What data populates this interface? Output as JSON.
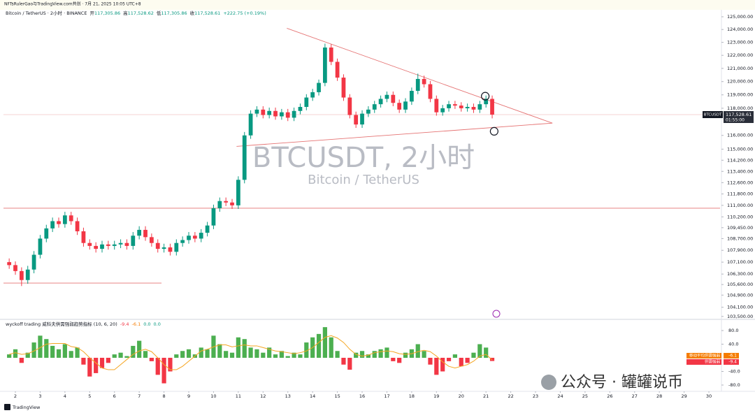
{
  "header": {
    "credit": "NFTsRulerGao与TradingView.com共创 · 7月 21, 2025 10:05 UTC+8",
    "symbol": "Bitcoin / TetherUS · 2小时 · BINANCE",
    "ohlc": [
      {
        "label": "开",
        "value": "117,305.86"
      },
      {
        "label": "高",
        "value": "117,528.62"
      },
      {
        "label": "低",
        "value": "117,305.86"
      },
      {
        "label": "收",
        "value": "117,528.61"
      }
    ],
    "change": "+222.75 (+0.19%)"
  },
  "footer": "TradingView",
  "overlay": "公众号 · 罐罐说币",
  "chart_data": [
    {
      "type": "candlestick",
      "title": "BTCUSDT, 2小时",
      "subtitle": "Bitcoin / TetherUS",
      "up_color": "#089981",
      "down_color": "#f23645",
      "log": true,
      "grid": false,
      "xlim": [
        1.52,
        30.45
      ],
      "ylim": [
        103400,
        125550
      ],
      "yticks": [
        {
          "value": 125000,
          "label": "125,000.00"
        },
        {
          "value": 124000,
          "label": "124,000.00"
        },
        {
          "value": 123000,
          "label": "123,000.00"
        },
        {
          "value": 122000,
          "label": "122,000.00"
        },
        {
          "value": 121000,
          "label": "121,000.00"
        },
        {
          "value": 120000,
          "label": "120,000.00"
        },
        {
          "value": 119000,
          "label": "119,000.00"
        },
        {
          "value": 118000,
          "label": "118,000.00"
        },
        {
          "value": 116000,
          "label": "116,000.00"
        },
        {
          "value": 115000,
          "label": "115,000.00"
        },
        {
          "value": 114200,
          "label": "114,200.00"
        },
        {
          "value": 113400,
          "label": "113,400.00"
        },
        {
          "value": 112600,
          "label": "112,600.00"
        },
        {
          "value": 111800,
          "label": "111,800.00"
        },
        {
          "value": 111000,
          "label": "111,000.00"
        },
        {
          "value": 110200,
          "label": "110,200.00"
        },
        {
          "value": 109450,
          "label": "109,450.00"
        },
        {
          "value": 108700,
          "label": "108,700.00"
        },
        {
          "value": 107900,
          "label": "107,900.00"
        },
        {
          "value": 107100,
          "label": "107,100.00"
        },
        {
          "value": 106300,
          "label": "106,300.00"
        },
        {
          "value": 105600,
          "label": "105,600.00"
        },
        {
          "value": 104900,
          "label": "104,900.00"
        },
        {
          "value": 104100,
          "label": "104,100.00"
        },
        {
          "value": 103500,
          "label": "103,500.00"
        }
      ],
      "x": [
        1.75,
        2,
        2.25,
        2.5,
        2.75,
        3,
        3.25,
        3.5,
        3.75,
        4,
        4.25,
        4.5,
        4.75,
        5,
        5.25,
        5.5,
        5.75,
        6,
        6.25,
        6.5,
        6.75,
        7,
        7.25,
        7.5,
        7.75,
        8,
        8.25,
        8.5,
        8.75,
        9,
        9.25,
        9.5,
        9.75,
        10,
        10.25,
        10.5,
        10.75,
        11,
        11.25,
        11.5,
        11.75,
        12,
        12.25,
        12.5,
        12.75,
        13,
        13.25,
        13.5,
        13.75,
        14,
        14.25,
        14.5,
        14.75,
        15,
        15.25,
        15.5,
        15.75,
        16,
        16.25,
        16.5,
        16.75,
        17,
        17.25,
        17.5,
        17.75,
        18,
        18.25,
        18.5,
        18.75,
        19,
        19.25,
        19.5,
        19.75,
        20,
        20.25,
        20.5,
        20.75,
        21,
        21.25
      ],
      "open": [
        107100,
        106900,
        106500,
        105900,
        106600,
        107600,
        108700,
        109400,
        109900,
        109700,
        110300,
        109900,
        109200,
        108400,
        108200,
        108000,
        108300,
        108200,
        108300,
        108400,
        108200,
        108900,
        109300,
        108800,
        108400,
        108000,
        108100,
        107800,
        108400,
        108600,
        108900,
        108700,
        109100,
        109600,
        110800,
        111300,
        111200,
        111000,
        112800,
        116000,
        117600,
        117900,
        117500,
        117800,
        117400,
        117700,
        117300,
        117800,
        118100,
        118800,
        119200,
        119900,
        122600,
        121500,
        120300,
        118800,
        117500,
        116800,
        117600,
        117900,
        118300,
        118700,
        119000,
        118400,
        117900,
        118500,
        119300,
        120200,
        119800,
        118700,
        117700,
        118000,
        118300,
        118200,
        118000,
        118100,
        117900,
        118300,
        118700
      ],
      "high": [
        107350,
        107150,
        106750,
        106850,
        107850,
        108950,
        109650,
        110150,
        110150,
        110550,
        110550,
        110150,
        109450,
        108650,
        108450,
        108550,
        108550,
        108550,
        108650,
        108650,
        109150,
        109550,
        109550,
        109050,
        108650,
        108350,
        108350,
        108650,
        108850,
        109150,
        109150,
        109350,
        109850,
        111050,
        111550,
        111550,
        111450,
        113050,
        116250,
        117850,
        118150,
        118150,
        118050,
        118050,
        117950,
        117950,
        118050,
        118350,
        119050,
        119450,
        120150,
        122900,
        122850,
        121750,
        120550,
        119050,
        117750,
        117850,
        118150,
        118550,
        118950,
        119250,
        119250,
        118650,
        118750,
        119550,
        120600,
        120450,
        120050,
        118950,
        118250,
        118550,
        118550,
        118450,
        118350,
        118350,
        118550,
        118950,
        118950
      ],
      "low": [
        106650,
        106250,
        105500,
        105650,
        106350,
        107350,
        108450,
        109150,
        109450,
        109450,
        109650,
        108950,
        108150,
        107950,
        107750,
        107750,
        107950,
        107950,
        108050,
        107950,
        107950,
        108650,
        108550,
        108150,
        107750,
        107750,
        107550,
        107550,
        108150,
        108350,
        108450,
        108450,
        108850,
        109350,
        110550,
        110950,
        110750,
        110750,
        112550,
        115750,
        117350,
        117250,
        117250,
        117150,
        117150,
        117050,
        117050,
        117550,
        117850,
        118550,
        118950,
        119650,
        121250,
        120050,
        118550,
        117250,
        116550,
        116550,
        117350,
        117650,
        118050,
        118450,
        118150,
        117650,
        117650,
        118250,
        119050,
        119550,
        118450,
        117450,
        117450,
        117750,
        117950,
        117750,
        117750,
        117650,
        117650,
        118050,
        117250
      ],
      "close": [
        106900,
        106500,
        105900,
        106600,
        107600,
        108700,
        109400,
        109900,
        109700,
        110300,
        109900,
        109200,
        108400,
        108200,
        108000,
        108300,
        108200,
        108300,
        108400,
        108200,
        108900,
        109300,
        108800,
        108400,
        108000,
        108100,
        107800,
        108400,
        108600,
        108900,
        108700,
        109100,
        109600,
        110800,
        111300,
        111200,
        111000,
        112800,
        116000,
        117600,
        117900,
        117500,
        117800,
        117400,
        117700,
        117300,
        117800,
        118100,
        118800,
        119200,
        119900,
        122600,
        121500,
        120300,
        118800,
        117500,
        116800,
        117600,
        117900,
        118300,
        118700,
        119000,
        118400,
        117900,
        118500,
        119300,
        120200,
        119800,
        118700,
        117700,
        118000,
        118300,
        118200,
        118000,
        118100,
        117900,
        118300,
        118700,
        117528.61
      ],
      "last_price": {
        "value": 117528.61,
        "label": "117,528.61"
      },
      "symbol": "BTCUSDT",
      "countdown": "01:55:00",
      "trendline_color": "#e57373",
      "trendlines": [
        {
          "x": [
            12.96,
            23.68
          ],
          "y": [
            124100,
            116900
          ]
        },
        {
          "x": [
            10.93,
            23.68
          ],
          "y": [
            115200,
            116900
          ]
        },
        {
          "x": [
            1.52,
            30.45
          ],
          "y": [
            110800,
            110800
          ]
        },
        {
          "x": [
            1.52,
            7.9
          ],
          "y": [
            105700,
            105700
          ]
        }
      ],
      "markers": {
        "x": [
          20.97,
          21.33
        ],
        "y": [
          118900,
          116300
        ]
      }
    },
    {
      "type": "bar",
      "title": "wyckoff trading 威科夫供需强弱趋势指标 (10, 6, 20)",
      "extra_values": [
        {
          "value": 0,
          "label": "0.0"
        },
        {
          "value": 0,
          "label": "0.0"
        }
      ],
      "xlim": [
        1.52,
        30.45
      ],
      "ylim": [
        -98.5,
        106.7
      ],
      "xticks": [
        2,
        3,
        4,
        5,
        6,
        7,
        8,
        9,
        10,
        11,
        12,
        13,
        14,
        15,
        16,
        17,
        18,
        19,
        20,
        21,
        22,
        23,
        24,
        25,
        26,
        27,
        28,
        29,
        30
      ],
      "yticks": [
        {
          "value": 80,
          "label": "80.0"
        },
        {
          "value": 40,
          "label": "40.0"
        },
        {
          "value": -40,
          "label": "-40.0"
        },
        {
          "value": -80,
          "label": "-80.0"
        }
      ],
      "x": [
        1.75,
        2,
        2.25,
        2.5,
        2.75,
        3,
        3.25,
        3.5,
        3.75,
        4,
        4.25,
        4.5,
        4.75,
        5,
        5.25,
        5.5,
        5.75,
        6,
        6.25,
        6.5,
        6.75,
        7,
        7.25,
        7.5,
        7.75,
        8,
        8.25,
        8.5,
        8.75,
        9,
        9.25,
        9.5,
        9.75,
        10,
        10.25,
        10.5,
        10.75,
        11,
        11.25,
        11.5,
        11.75,
        12,
        12.25,
        12.5,
        12.75,
        13,
        13.25,
        13.5,
        13.75,
        14,
        14.25,
        14.5,
        14.75,
        15,
        15.25,
        15.5,
        15.75,
        16,
        16.25,
        16.5,
        16.75,
        17,
        17.25,
        17.5,
        17.75,
        18,
        18.25,
        18.5,
        18.75,
        19,
        19.25,
        19.5,
        19.75,
        20,
        20.25,
        20.5,
        20.75,
        21,
        21.25
      ],
      "series": [
        {
          "name": "供需强弱",
          "color": "#4caf50",
          "negative_color": "#f23645",
          "label_color": "#f23645",
          "values": [
            10,
            25,
            -15,
            15,
            45,
            65,
            55,
            35,
            25,
            40,
            20,
            30,
            -20,
            -55,
            -45,
            -30,
            -15,
            10,
            15,
            5,
            35,
            50,
            20,
            -10,
            -50,
            -75,
            -40,
            10,
            20,
            25,
            10,
            30,
            25,
            65,
            40,
            20,
            15,
            60,
            55,
            30,
            25,
            15,
            30,
            10,
            20,
            5,
            15,
            10,
            45,
            60,
            70,
            90,
            60,
            20,
            -20,
            -35,
            15,
            20,
            10,
            20,
            25,
            30,
            -10,
            -15,
            15,
            25,
            40,
            20,
            -20,
            -50,
            -40,
            -10,
            10,
            -25,
            -15,
            15,
            40,
            30,
            -9.4
          ]
        },
        {
          "name": "移动平均供需强弱",
          "color": "#f5a623",
          "label_color": "#f57c00",
          "values": [
            10,
            15,
            10,
            12,
            20,
            30,
            40,
            42,
            42,
            42,
            33,
            30,
            18,
            0,
            -15,
            -30,
            -35,
            -35,
            -20,
            -5,
            10,
            20,
            25,
            18,
            0,
            -20,
            -35,
            -35,
            -25,
            -10,
            5,
            20,
            25,
            32,
            38,
            38,
            32,
            35,
            38,
            35,
            35,
            30,
            25,
            20,
            18,
            15,
            12,
            15,
            20,
            30,
            45,
            60,
            65,
            58,
            45,
            25,
            10,
            5,
            8,
            15,
            18,
            20,
            18,
            12,
            10,
            12,
            18,
            22,
            18,
            5,
            -12,
            -25,
            -30,
            -25,
            -20,
            -10,
            5,
            10,
            -6.1
          ]
        }
      ]
    }
  ]
}
